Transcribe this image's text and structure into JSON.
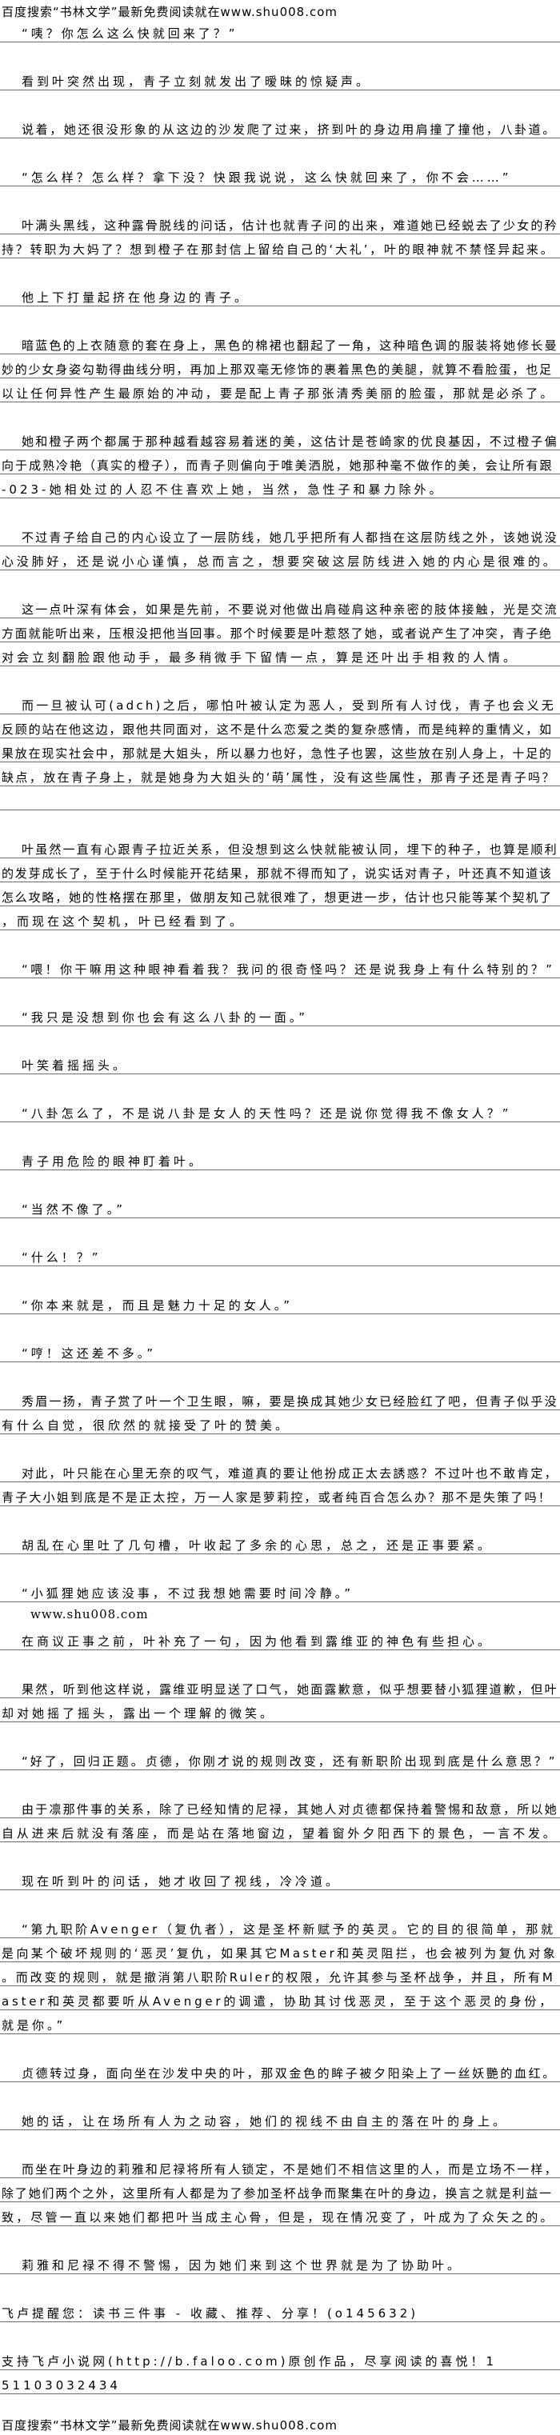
{
  "header": {
    "text": "百度搜索“书林文学”最新免费阅读就在www.shu008.com"
  },
  "footer": {
    "text": "百度搜索“书林文学”最新免费阅读就在www.shu008.com"
  },
  "paragraphs": [
    {
      "indent": true,
      "lines": [
        "“咦？你怎么这么快就回来了？”"
      ]
    },
    {
      "indent": true,
      "lines": [
        "看到叶突然出现，青子立刻就发出了暧昧的惊疑声。"
      ]
    },
    {
      "indent": true,
      "lines": [
        "说着，她还很没形象的从这边的沙发爬了过来，挤到叶的身边用肩撞了撞他，八卦道。"
      ]
    },
    {
      "indent": true,
      "lines": [
        "“怎么样？怎么样？拿下没？快跟我说说，这么快就回来了，你不会……”"
      ]
    },
    {
      "indent": true,
      "lines": [
        "叶满头黑线，这种露骨脱线的问话，估计也就青子问的出来，难道她已经蜕去了少女的矜",
        "持？转职为大妈了？想到橙子在那封信上留给自己的‘大礼’，叶的眼神就不禁怪异起来。"
      ]
    },
    {
      "indent": true,
      "lines": [
        "他上下打量起挤在他身边的青子。"
      ]
    },
    {
      "indent": true,
      "lines": [
        "暗蓝色的上衣随意的套在身上，黑色的棉裙也翻起了一角，这种暗色调的服装将她修长曼",
        "妙的少女身姿勾勒得曲线分明，再加上那双毫无修饰的裹着黑色的美腿，就算不看脸蛋，也足",
        "以让任何异性产生最原始的冲动，要是配上青子那张清秀美丽的脸蛋，那就是必杀了。"
      ]
    },
    {
      "indent": true,
      "lines": [
        "她和橙子两个都属于那种越看越容易着迷的美，这估计是苍崎家的优良基因，不过橙子偏",
        "向于成熟冷艳（真实的橙子），而青子则偏向于唯美洒脱，她那种毫不做作的美，会让所有跟",
        "-023-她相处过的人忍不住喜欢上她，当然，急性子和暴力除外。"
      ]
    },
    {
      "indent": true,
      "lines": [
        "不过青子给自己的内心设立了一层防线，她几乎把所有人都挡在这层防线之外，该她说没",
        "心没肺好，还是说小心谨慎，总而言之，想要突破这层防线进入她的内心是很难的。"
      ]
    },
    {
      "indent": true,
      "lines": [
        "这一点叶深有体会，如果是先前，不要说对他做出肩碰肩这种亲密的肢体接触，光是交流",
        "方面就能听出来，压根没把他当回事。那个时候要是叶惹怒了她，或者说产生了冲突，青子绝",
        "对会立刻翻脸跟他动手，最多稍微手下留情一点，算是还叶出手相救的人情。"
      ]
    },
    {
      "indent": true,
      "lines": [
        "而一旦被认可(adch)之后，哪怕叶被认定为恶人，受到所有人讨伐，青子也会义无",
        "反顾的站在他这边，跟他共同面对，这不是什么恋爱之类的复杂感情，而是纯粹的重情义，如",
        "果放在现实社会中，那就是大姐头，所以暴力也好，急性子也罢，这些放在别人身上，十足的",
        "缺点，放在青子身上，就是她身为大姐头的‘萌’属性，没有这些属性，那青子还是青子吗？",
        ""
      ]
    },
    {
      "indent": true,
      "lines": [
        "叶虽然一直有心跟青子拉近关系，但没想到这么快就能被认同，埋下的种子，也算是顺利",
        "的发芽成长了，至于什么时候能开花结果，那就不得而知了，说实话对青子，叶还真不知道该",
        "怎么攻略，她的性格摆在那里，做朋友知己就很难了，想更进一步，估计也只能等某个契机了",
        "，而现在这个契机，叶已经看到了。"
      ]
    },
    {
      "indent": true,
      "lines": [
        "“喂！你干嘛用这种眼神看着我？我问的很奇怪吗？还是说我身上有什么特别的？”"
      ]
    },
    {
      "indent": true,
      "lines": [
        "“我只是没想到你也会有这么八卦的一面。”"
      ]
    },
    {
      "indent": true,
      "lines": [
        "叶笑着摇摇头。"
      ]
    },
    {
      "indent": true,
      "lines": [
        "“八卦怎么了，不是说八卦是女人的天性吗？还是说你觉得我不像女人？”"
      ]
    },
    {
      "indent": true,
      "lines": [
        "青子用危险的眼神盯着叶。"
      ]
    },
    {
      "indent": true,
      "lines": [
        "“当然不像了。”"
      ]
    },
    {
      "indent": true,
      "lines": [
        "“什么！？”"
      ]
    },
    {
      "indent": true,
      "lines": [
        "“你本来就是，而且是魅力十足的女人。”"
      ]
    },
    {
      "indent": true,
      "lines": [
        "“哼！这还差不多。”"
      ]
    },
    {
      "indent": true,
      "lines": [
        "秀眉一扬，青子赏了叶一个卫生眼，嘛，要是换成其她少女已经脸红了吧，但青子似乎没",
        "有什么自觉，很欣然的就接受了叶的赞美。"
      ]
    },
    {
      "indent": true,
      "lines": [
        "对此，叶只能在心里无奈的叹气，难道真的要让他扮成正太去誘惑？不过叶也不敢肯定，",
        "青子大小姐到底是不是正太控，万一人家是萝莉控，或者纯百合怎么办？那不是失策了吗！"
      ]
    },
    {
      "indent": true,
      "lines": [
        "胡乱在心里吐了几句槽，叶收起了多余的心思，总之，还是正事要紧。"
      ]
    },
    {
      "indent": true,
      "lines": [
        "“小狐狸她应该没事，不过我想她需要时间冷静。”"
      ]
    },
    {
      "kind": "note",
      "lines": [
        "www.shu008.com"
      ]
    },
    {
      "indent": true,
      "lines": [
        "在商议正事之前，叶补充了一句，因为他看到露维亚的神色有些担心。"
      ]
    },
    {
      "indent": true,
      "lines": [
        "果然，听到他这样说，露维亚明显送了口气，她面露歉意，似乎想要替小狐狸道歉，但叶",
        "却对她摇了摇头，露出一个理解的微笑。"
      ]
    },
    {
      "indent": true,
      "lines": [
        "“好了，回归正题。贞德，你刚才说的规则改变，还有新职阶出现到底是什么意思？”"
      ]
    },
    {
      "indent": true,
      "lines": [
        "由于凛那件事的关系，除了已经知情的尼禄，其她人对贞德都保持着警惕和敌意，所以她",
        "自从进来后就没有落座，而是站在落地窗边，望着窗外夕阳西下的景色，一言不发。"
      ]
    },
    {
      "indent": true,
      "lines": [
        "现在听到叶的问话，她才收回了视线，冷冷道。"
      ]
    },
    {
      "indent": true,
      "lines": [
        "“第九职阶Avenger（复仇者），这是圣杯新赋予的英灵。它的目的很简单，那就",
        "是向某个破坏规则的‘恶灵’复仇，如果其它Master和英灵阻拦，也会被列为复仇对象",
        "。而改变的规则，就是撤消第八职阶Ruler的权限，允许其参与圣杯战争，并且，所有M",
        "aster和英灵都要听从Avenger的调遣，协助其讨伐恶灵，至于这个恶灵的身份，",
        "就是你。”"
      ]
    },
    {
      "indent": true,
      "lines": [
        "贞德转过身，面向坐在沙发中央的叶，那双金色的眸子被夕阳染上了一丝妖艷的血红。"
      ]
    },
    {
      "indent": true,
      "lines": [
        "她的话，让在场所有人为之动容，她们的视线不由自主的落在叶的身上。"
      ]
    },
    {
      "indent": true,
      "lines": [
        "而坐在叶身边的莉雅和尼禄将所有人锁定，不是她们不相信这里的人，而是立场不一样，",
        "除了她们两个之外，这里所有人都是为了参加圣杯战争而聚集在叶的身边，换言之就是利益一",
        "致，尽管一直以来她们都把叶当成主心骨，但是，现在情况变了，叶成为了众矢之的。"
      ]
    },
    {
      "indent": true,
      "lines": [
        "莉雅和尼禄不得不警惕，因为她们来到这个世界就是为了协助叶。"
      ]
    },
    {
      "indent": false,
      "lines": [
        "飞卢提醒您：读书三件事 - 收藏、推荐、分享！(o145632)"
      ]
    },
    {
      "indent": false,
      "lines": [
        "支持飞卢小说网(http://b.faloo.com)原创作品，尽享阅读的喜悦！1",
        "51103032434"
      ]
    }
  ]
}
